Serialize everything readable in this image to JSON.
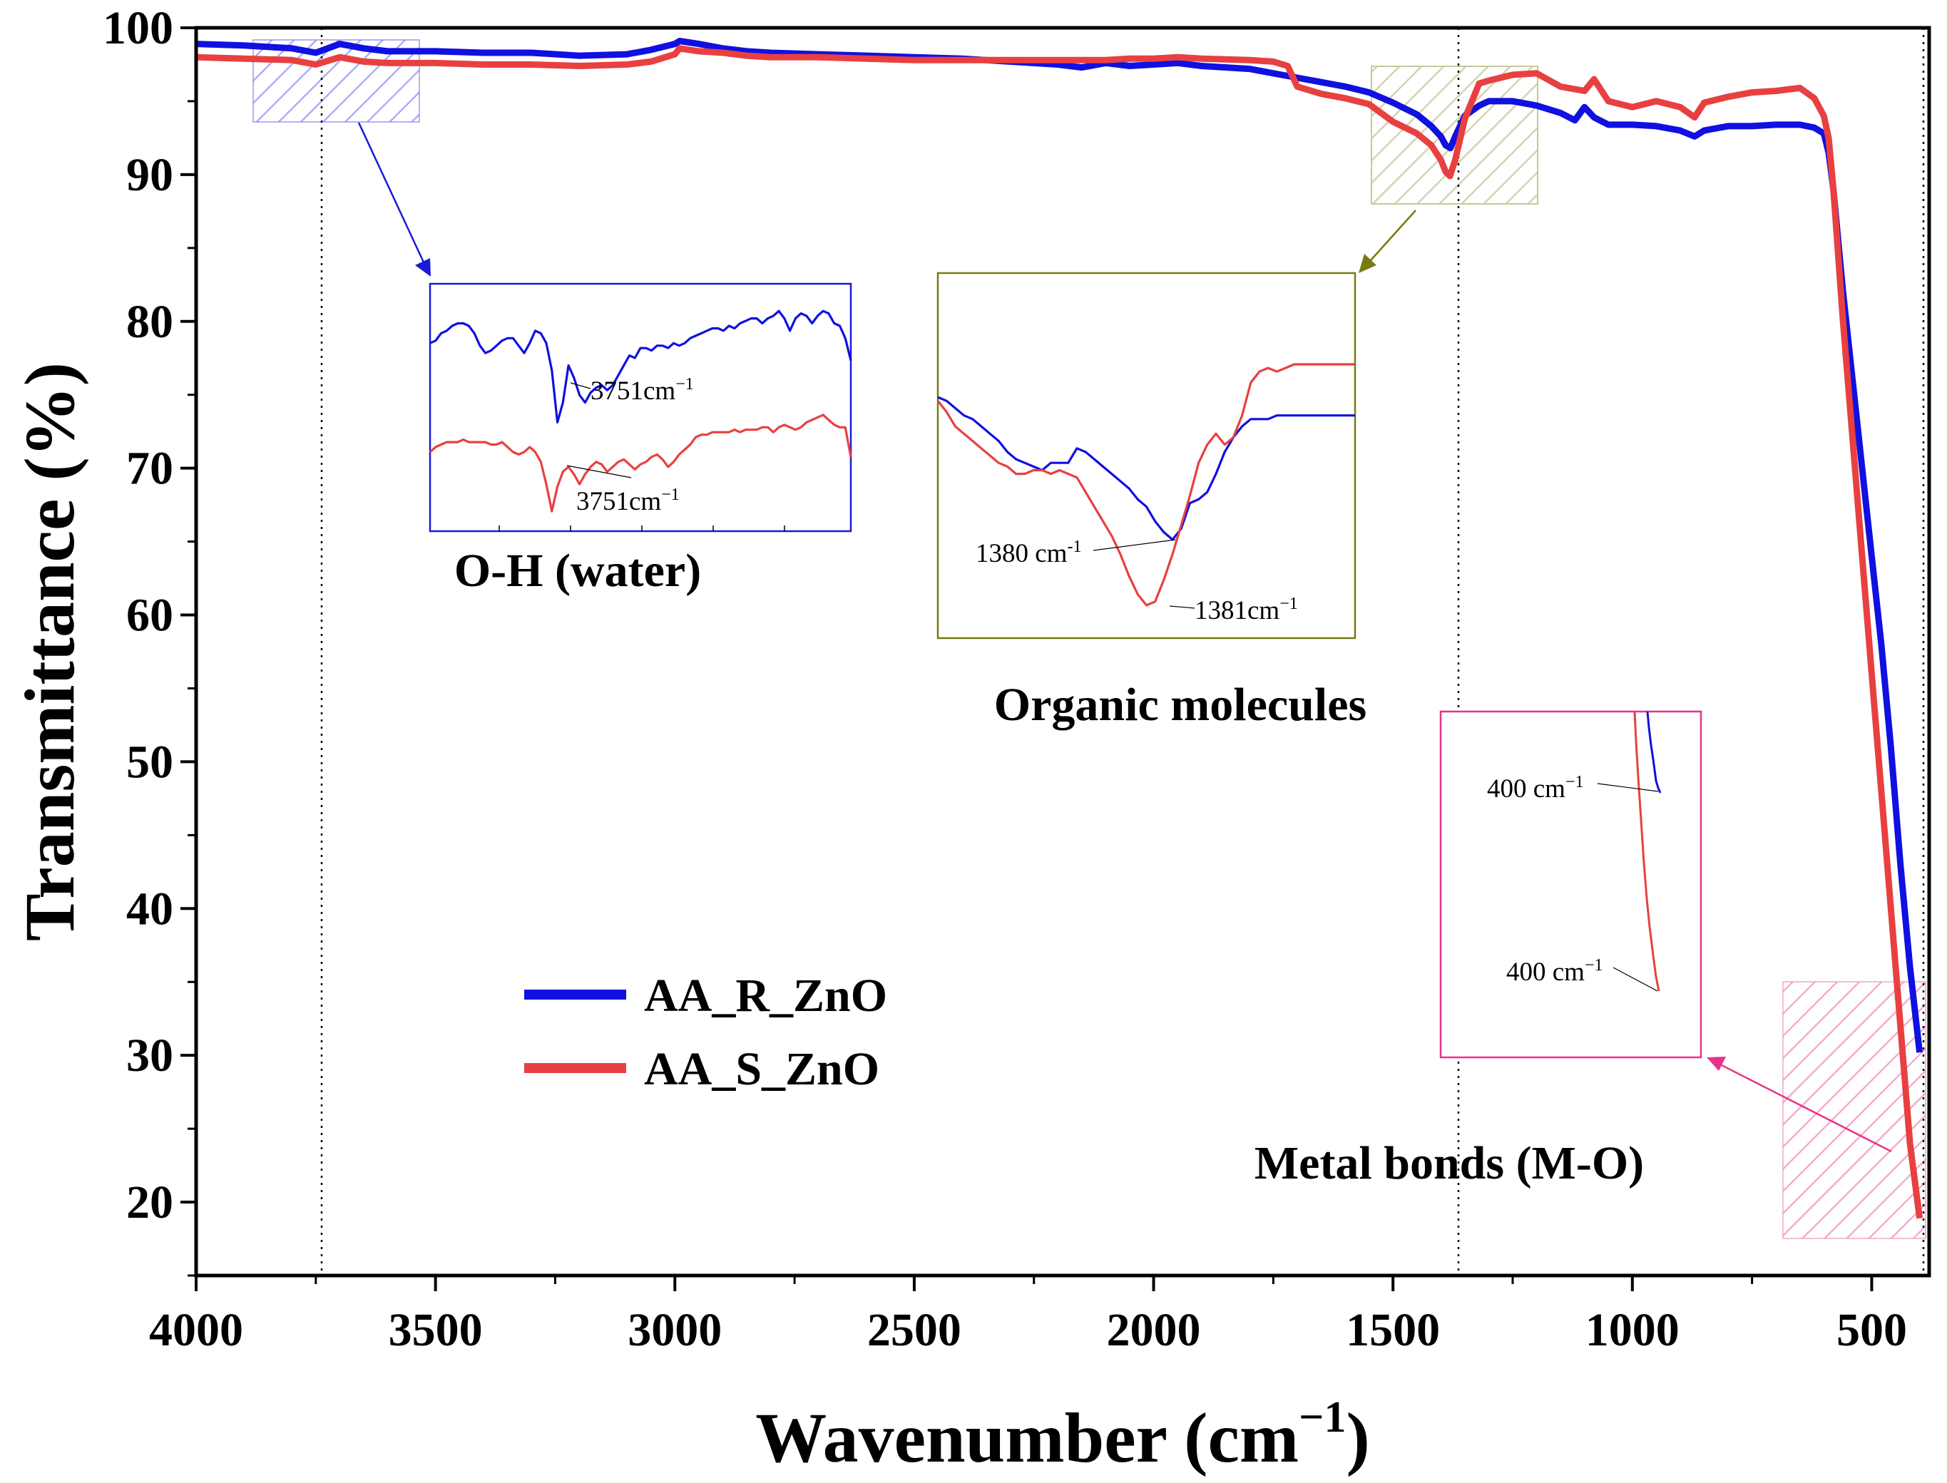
{
  "chart_data": {
    "type": "line",
    "xlabel": "Wavenumber (cm",
    "xlabel_sup": "−1",
    "xlabel_close": ")",
    "ylabel": "Transmittance (%)",
    "xlim": [
      4000,
      380
    ],
    "ylim": [
      15,
      100
    ],
    "x_ticks": [
      4000,
      3500,
      3000,
      2500,
      2000,
      1500,
      1000,
      500
    ],
    "y_ticks": [
      20,
      30,
      40,
      50,
      60,
      70,
      80,
      90,
      100
    ],
    "legend": {
      "position": "center-left",
      "entries": [
        "AA_R_ZnO",
        "AA_S_ZnO"
      ]
    },
    "colors": {
      "AA_R_ZnO": "#1010e0",
      "AA_S_ZnO": "#e84040",
      "oh": "#4040e0",
      "org": "#7a7a10",
      "metal": "#e8338a"
    },
    "series": [
      {
        "name": "AA_R_ZnO",
        "color": "#1010e0",
        "x": [
          4000,
          3900,
          3800,
          3750,
          3700,
          3650,
          3600,
          3500,
          3400,
          3300,
          3200,
          3100,
          3050,
          3000,
          2990,
          2950,
          2900,
          2850,
          2800,
          2700,
          2600,
          2500,
          2400,
          2300,
          2200,
          2150,
          2100,
          2050,
          2000,
          1950,
          1900,
          1800,
          1750,
          1700,
          1650,
          1600,
          1550,
          1500,
          1450,
          1420,
          1400,
          1390,
          1380,
          1370,
          1350,
          1320,
          1300,
          1250,
          1200,
          1150,
          1120,
          1100,
          1080,
          1050,
          1000,
          950,
          900,
          870,
          850,
          800,
          750,
          700,
          650,
          620,
          600,
          590,
          580,
          560,
          540,
          520,
          500,
          480,
          460,
          440,
          420,
          400
        ],
        "y": [
          98.9,
          98.8,
          98.6,
          98.3,
          98.9,
          98.6,
          98.4,
          98.4,
          98.3,
          98.3,
          98.1,
          98.2,
          98.5,
          98.9,
          99.1,
          98.9,
          98.6,
          98.4,
          98.3,
          98.2,
          98.1,
          98.0,
          97.9,
          97.7,
          97.5,
          97.3,
          97.6,
          97.4,
          97.5,
          97.6,
          97.4,
          97.2,
          96.9,
          96.6,
          96.3,
          96.0,
          95.6,
          94.9,
          94.1,
          93.3,
          92.6,
          92.0,
          91.8,
          92.6,
          94.0,
          94.7,
          95.0,
          95.0,
          94.7,
          94.2,
          93.7,
          94.6,
          93.9,
          93.4,
          93.4,
          93.3,
          93.0,
          92.6,
          93.0,
          93.3,
          93.3,
          93.4,
          93.4,
          93.2,
          92.8,
          91.5,
          89.0,
          82.0,
          76.0,
          70.0,
          64.0,
          58.0,
          51.0,
          43.0,
          36.0,
          30.2
        ]
      },
      {
        "name": "AA_S_ZnO",
        "color": "#e84040",
        "x": [
          4000,
          3900,
          3800,
          3750,
          3700,
          3650,
          3600,
          3500,
          3400,
          3300,
          3200,
          3100,
          3050,
          3000,
          2990,
          2950,
          2900,
          2850,
          2800,
          2700,
          2600,
          2500,
          2400,
          2300,
          2200,
          2150,
          2100,
          2050,
          2000,
          1950,
          1900,
          1800,
          1750,
          1720,
          1700,
          1650,
          1600,
          1550,
          1500,
          1450,
          1420,
          1400,
          1390,
          1381,
          1370,
          1350,
          1320,
          1300,
          1250,
          1200,
          1150,
          1100,
          1080,
          1050,
          1000,
          950,
          900,
          870,
          850,
          800,
          750,
          700,
          650,
          620,
          600,
          590,
          580,
          560,
          540,
          520,
          500,
          480,
          460,
          440,
          420,
          400
        ],
        "y": [
          98.0,
          97.9,
          97.8,
          97.5,
          98.0,
          97.7,
          97.6,
          97.6,
          97.5,
          97.5,
          97.4,
          97.5,
          97.7,
          98.2,
          98.6,
          98.4,
          98.3,
          98.1,
          98.0,
          98.0,
          97.9,
          97.8,
          97.8,
          97.8,
          97.8,
          97.8,
          97.8,
          97.9,
          97.9,
          98.0,
          97.9,
          97.8,
          97.7,
          97.4,
          96.0,
          95.5,
          95.2,
          94.8,
          93.6,
          92.8,
          92.0,
          91.0,
          90.2,
          89.9,
          91.0,
          93.8,
          96.2,
          96.4,
          96.8,
          96.9,
          96.0,
          95.7,
          96.5,
          95.0,
          94.6,
          95.0,
          94.6,
          93.9,
          94.9,
          95.3,
          95.6,
          95.7,
          95.9,
          95.2,
          94.0,
          92.5,
          89.0,
          80.0,
          72.0,
          64.0,
          56.0,
          48.0,
          40.0,
          32.0,
          24.0,
          18.9
        ]
      }
    ],
    "insets": [
      {
        "id": "oh",
        "caption": "O-H (water)",
        "labels": [
          {
            "text": "3751cm",
            "sup": "−1"
          },
          {
            "text": "3751cm",
            "sup": "−1"
          }
        ],
        "series": [
          {
            "color": "#1010e0",
            "y": [
              0.24,
              0.23,
              0.2,
              0.19,
              0.17,
              0.16,
              0.16,
              0.17,
              0.2,
              0.25,
              0.28,
              0.27,
              0.25,
              0.23,
              0.22,
              0.22,
              0.25,
              0.28,
              0.24,
              0.19,
              0.2,
              0.24,
              0.35,
              0.56,
              0.48,
              0.33,
              0.38,
              0.45,
              0.48,
              0.44,
              0.42,
              0.41,
              0.43,
              0.41,
              0.37,
              0.33,
              0.29,
              0.3,
              0.26,
              0.26,
              0.27,
              0.25,
              0.25,
              0.26,
              0.24,
              0.25,
              0.24,
              0.22,
              0.21,
              0.2,
              0.19,
              0.18,
              0.18,
              0.19,
              0.17,
              0.18,
              0.16,
              0.15,
              0.14,
              0.14,
              0.16,
              0.14,
              0.13,
              0.11,
              0.14,
              0.19,
              0.14,
              0.12,
              0.13,
              0.16,
              0.13,
              0.11,
              0.12,
              0.16,
              0.17,
              0.22,
              0.31
            ]
          },
          {
            "color": "#e84040",
            "y": [
              0.68,
              0.66,
              0.65,
              0.64,
              0.64,
              0.64,
              0.63,
              0.64,
              0.64,
              0.64,
              0.64,
              0.65,
              0.65,
              0.64,
              0.66,
              0.68,
              0.69,
              0.68,
              0.66,
              0.68,
              0.72,
              0.81,
              0.92,
              0.82,
              0.76,
              0.74,
              0.77,
              0.81,
              0.77,
              0.74,
              0.72,
              0.73,
              0.76,
              0.74,
              0.72,
              0.71,
              0.73,
              0.75,
              0.73,
              0.72,
              0.7,
              0.69,
              0.71,
              0.74,
              0.72,
              0.69,
              0.67,
              0.65,
              0.62,
              0.61,
              0.61,
              0.6,
              0.6,
              0.6,
              0.6,
              0.59,
              0.6,
              0.59,
              0.59,
              0.59,
              0.58,
              0.58,
              0.6,
              0.58,
              0.57,
              0.58,
              0.59,
              0.58,
              0.56,
              0.55,
              0.54,
              0.53,
              0.55,
              0.57,
              0.58,
              0.58,
              0.7
            ]
          }
        ]
      },
      {
        "id": "org",
        "caption": "Organic molecules",
        "labels": [
          {
            "text": "1380 cm",
            "sup": "-1"
          },
          {
            "text": "1381cm",
            "sup": "−1"
          }
        ],
        "series": [
          {
            "color": "#1010e0",
            "y": [
              0.34,
              0.35,
              0.37,
              0.39,
              0.4,
              0.42,
              0.44,
              0.46,
              0.49,
              0.51,
              0.52,
              0.53,
              0.54,
              0.52,
              0.52,
              0.52,
              0.48,
              0.49,
              0.51,
              0.53,
              0.55,
              0.57,
              0.59,
              0.62,
              0.64,
              0.68,
              0.71,
              0.73,
              0.7,
              0.63,
              0.62,
              0.6,
              0.55,
              0.49,
              0.45,
              0.42,
              0.4,
              0.4,
              0.4,
              0.39,
              0.39,
              0.39,
              0.39,
              0.39,
              0.39,
              0.39,
              0.39,
              0.39,
              0.39
            ]
          },
          {
            "color": "#e84040",
            "y": [
              0.35,
              0.38,
              0.42,
              0.44,
              0.46,
              0.48,
              0.5,
              0.52,
              0.53,
              0.55,
              0.55,
              0.54,
              0.54,
              0.55,
              0.54,
              0.55,
              0.56,
              0.6,
              0.64,
              0.68,
              0.72,
              0.77,
              0.83,
              0.88,
              0.91,
              0.9,
              0.84,
              0.77,
              0.69,
              0.61,
              0.52,
              0.47,
              0.44,
              0.47,
              0.45,
              0.39,
              0.3,
              0.27,
              0.26,
              0.27,
              0.26,
              0.25,
              0.25,
              0.25,
              0.25,
              0.25,
              0.25,
              0.25,
              0.25
            ]
          }
        ]
      },
      {
        "id": "metal",
        "caption": "Metal bonds (M-O)",
        "labels": [
          {
            "text": "400 cm",
            "sup": "−1"
          },
          {
            "text": "400 cm",
            "sup": "−1"
          }
        ]
      }
    ]
  }
}
